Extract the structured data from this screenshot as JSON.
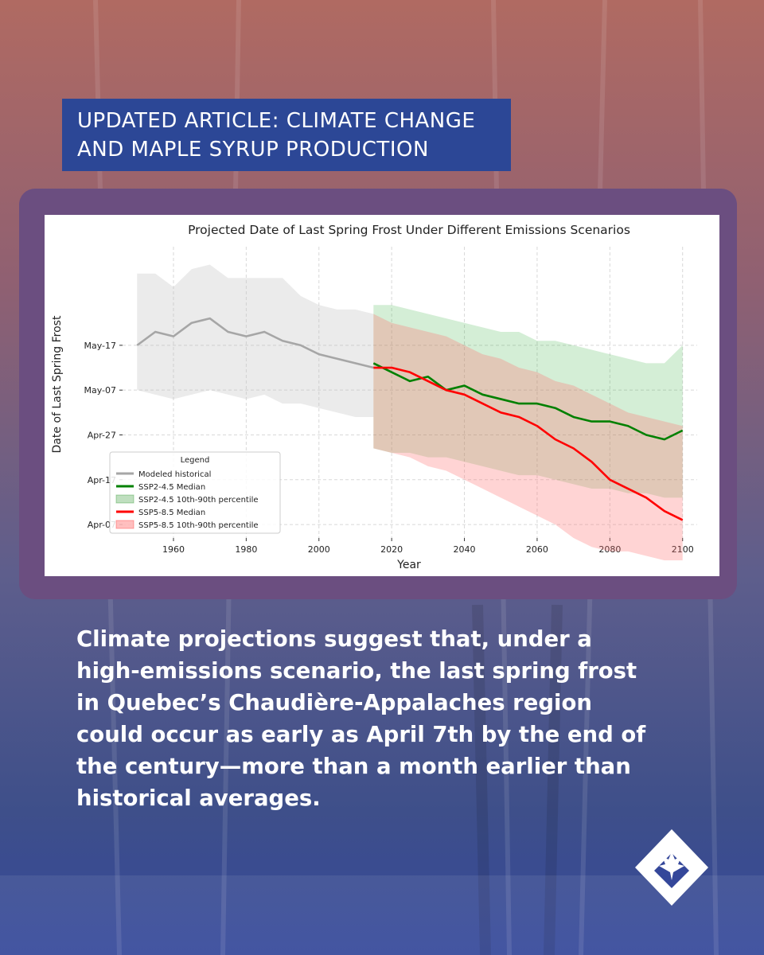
{
  "headline": {
    "line1": "UPDATED ARTICLE: CLIMATE CHANGE",
    "line2": "AND MAPLE SYRUP PRODUCTION"
  },
  "caption": {
    "lines": [
      "Climate projections suggest that, under a",
      "high-emissions scenario, the last spring frost",
      "in Quebec’s Chaudière-Appalaches region",
      "could occur as early as April 7th by the end of",
      "the century—more than a month earlier than",
      "historical averages."
    ]
  },
  "logo": {
    "icon": "maple-leaf-diamond-icon"
  },
  "colors": {
    "headline_bg": "#2c4796",
    "card_bg": "#6b4e80",
    "historical": "#a6a6a6",
    "ssp245": "#008000",
    "ssp585": "#ff0000"
  },
  "chart_data": {
    "type": "line",
    "title": "Projected Date of Last Spring Frost Under Different Emissions Scenarios",
    "xlabel": "Year",
    "ylabel": "Date of Last Spring Frost",
    "xlim": [
      1946,
      2104
    ],
    "ylim_day_of_year": [
      94,
      159
    ],
    "x_ticks": [
      1960,
      1980,
      2000,
      2020,
      2040,
      2060,
      2080,
      2100
    ],
    "y_ticks": [
      {
        "label": "Apr-07",
        "day_of_year": 97
      },
      {
        "label": "Apr-17",
        "day_of_year": 107
      },
      {
        "label": "Apr-27",
        "day_of_year": 117
      },
      {
        "label": "May-07",
        "day_of_year": 127
      },
      {
        "label": "May-17",
        "day_of_year": 137
      }
    ],
    "grid": true,
    "legend": {
      "title": "Legend",
      "placement": "lower-left",
      "entries": [
        {
          "label": "Modeled historical",
          "kind": "line",
          "color": "#a6a6a6"
        },
        {
          "label": "SSP2-4.5 Median",
          "kind": "line",
          "color": "#008000"
        },
        {
          "label": "SSP2-4.5 10th-90th percentile",
          "kind": "band",
          "color": "#008000"
        },
        {
          "label": "SSP5-8.5 Median",
          "kind": "line",
          "color": "#ff0000"
        },
        {
          "label": "SSP5-8.5 10th-90th percentile",
          "kind": "band",
          "color": "#ff0000"
        }
      ]
    },
    "series": [
      {
        "name": "Modeled historical",
        "color": "#a6a6a6",
        "x": [
          1950,
          1955,
          1960,
          1965,
          1970,
          1975,
          1980,
          1985,
          1990,
          1995,
          2000,
          2005,
          2010,
          2015
        ],
        "median": [
          137,
          140,
          139,
          142,
          143,
          140,
          139,
          140,
          138,
          137,
          135,
          134,
          133,
          132
        ],
        "p10": [
          127,
          126,
          125,
          126,
          127,
          126,
          125,
          126,
          124,
          124,
          123,
          122,
          121,
          121
        ],
        "p90": [
          153,
          153,
          150,
          154,
          155,
          152,
          152,
          152,
          152,
          148,
          146,
          145,
          145,
          144
        ]
      },
      {
        "name": "SSP2-4.5 Median",
        "band_name": "SSP2-4.5 10th-90th percentile",
        "color": "#008000",
        "x": [
          2015,
          2020,
          2025,
          2030,
          2035,
          2040,
          2045,
          2050,
          2055,
          2060,
          2065,
          2070,
          2075,
          2080,
          2085,
          2090,
          2095,
          2100
        ],
        "median": [
          133,
          131,
          129,
          130,
          127,
          128,
          126,
          125,
          124,
          124,
          123,
          121,
          120,
          120,
          119,
          117,
          116,
          118
        ],
        "p10": [
          114,
          113,
          113,
          112,
          112,
          111,
          110,
          109,
          108,
          108,
          107,
          106,
          105,
          105,
          104,
          104,
          103,
          103
        ],
        "p90": [
          146,
          146,
          145,
          144,
          143,
          142,
          141,
          140,
          140,
          138,
          138,
          137,
          136,
          135,
          134,
          133,
          133,
          137
        ]
      },
      {
        "name": "SSP5-8.5 Median",
        "band_name": "SSP5-8.5 10th-90th percentile",
        "color": "#ff0000",
        "x": [
          2015,
          2020,
          2025,
          2030,
          2035,
          2040,
          2045,
          2050,
          2055,
          2060,
          2065,
          2070,
          2075,
          2080,
          2085,
          2090,
          2095,
          2100
        ],
        "median": [
          132,
          132,
          131,
          129,
          127,
          126,
          124,
          122,
          121,
          119,
          116,
          114,
          111,
          107,
          105,
          103,
          100,
          98
        ],
        "p10": [
          114,
          113,
          112,
          110,
          109,
          107,
          105,
          103,
          101,
          99,
          97,
          94,
          92,
          91,
          91,
          90,
          89,
          89
        ],
        "p90": [
          144,
          142,
          141,
          140,
          139,
          137,
          135,
          134,
          132,
          131,
          129,
          128,
          126,
          124,
          122,
          121,
          120,
          119
        ]
      }
    ]
  }
}
